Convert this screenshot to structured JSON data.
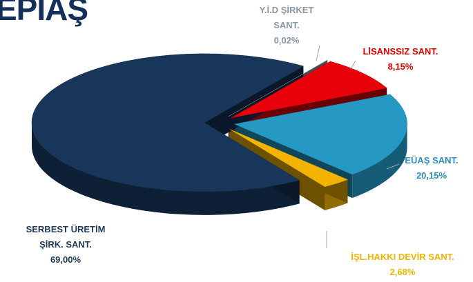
{
  "logo": "EPIAŞ",
  "chart_data": {
    "type": "pie3d",
    "categories": [
      "SERBEST ÜRETİM ŞİRK. SANT.",
      "EÜAŞ SANT.",
      "İŞL.HAKKI DEVİR SANT.",
      "LİSANSSIZ SANT.",
      "Y.İ.D ŞİRKET SANT."
    ],
    "values": [
      69.0,
      20.15,
      2.68,
      8.15,
      0.02
    ],
    "value_labels": [
      "69,00%",
      "20,15%",
      "2,68%",
      "8,15%",
      "0,02%"
    ],
    "colors": [
      "#17365a",
      "#2599c4",
      "#f2b400",
      "#e8000b",
      "#9aa7b5"
    ],
    "label_colors": [
      "#1f3a5a",
      "#2a8fc0",
      "#f2b400",
      "#e00000",
      "#8a96a3"
    ]
  }
}
